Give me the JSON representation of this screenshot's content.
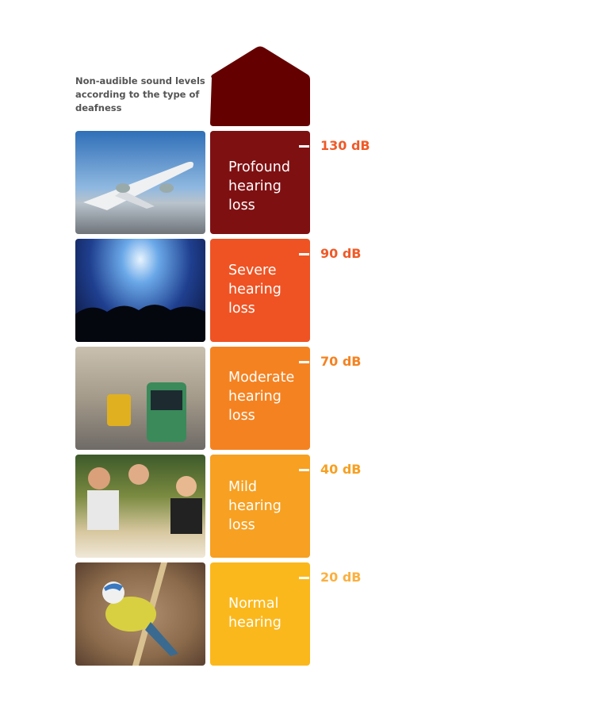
{
  "caption": "Non-audible sound levels according to the type of deafness",
  "top_color": "#650000",
  "levels": [
    {
      "label": "Profound hearing loss",
      "db": "130 dB",
      "color": "#7f1012",
      "db_color": "#f05a28",
      "image": "airplane-takeoff"
    },
    {
      "label": "Severe hearing loss",
      "db": "90 dB",
      "color": "#ef5323",
      "db_color": "#f05a28",
      "image": "concert-crowd"
    },
    {
      "label": "Moderate hearing loss",
      "db": "70 dB",
      "color": "#f58220",
      "db_color": "#f58220",
      "image": "city-tram"
    },
    {
      "label": "Mild hearing loss",
      "db": "40 dB",
      "color": "#f7a021",
      "db_color": "#f7a021",
      "image": "people-dining"
    },
    {
      "label": "Normal hearing",
      "db": "20 dB",
      "color": "#fbb81c",
      "db_color": "#fbb040",
      "image": "blue-tit-bird"
    }
  ]
}
